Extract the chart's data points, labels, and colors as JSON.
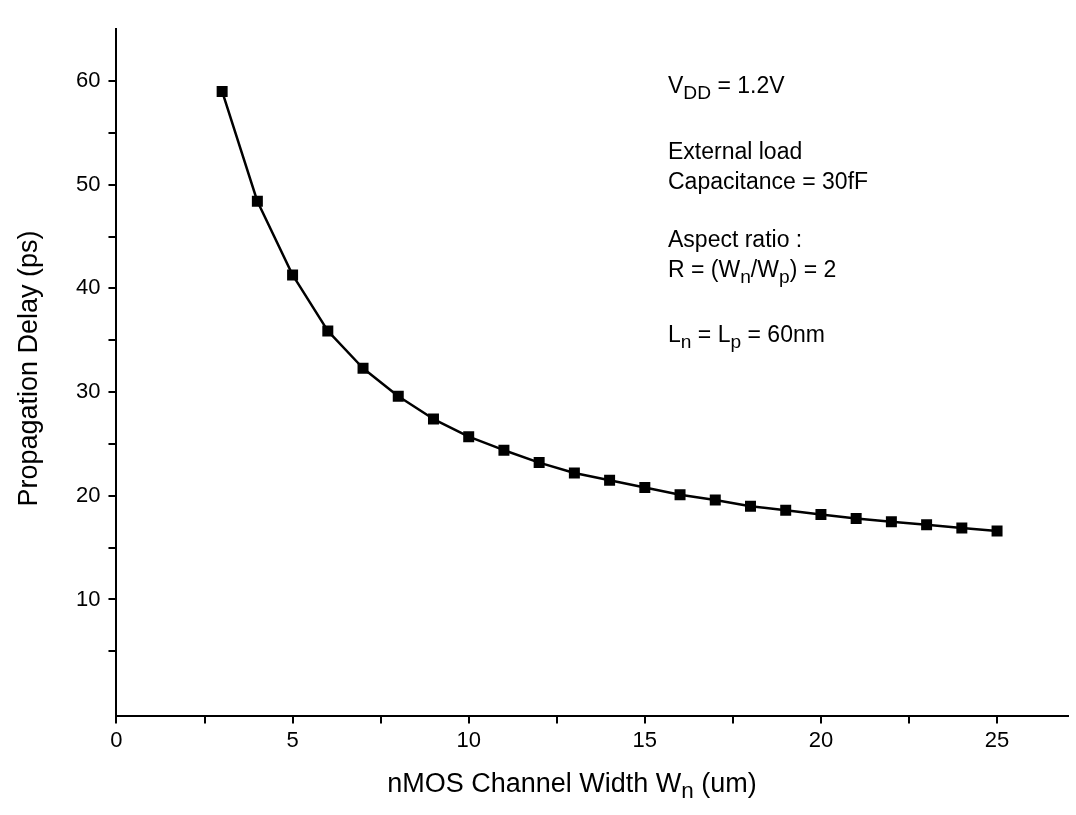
{
  "chart_data": {
    "type": "line",
    "xlabel": "nMOS Channel Width W$_{n}$ (um)",
    "ylabel": "Propagation Delay (ps)",
    "annotations": [
      "V$_{DD}$ = 1.2V",
      "External load\nCapacitance = 30fF",
      "Aspect ratio :\nR = (W$_{n}$/W$_{p}$) = 2",
      "L$_{n}$ = L$_{p}$ = 60nm"
    ],
    "x": [
      3,
      4,
      5,
      6,
      7,
      8,
      9,
      10,
      11,
      12,
      13,
      14,
      15,
      16,
      17,
      18,
      19,
      20,
      21,
      22,
      23,
      24,
      25
    ],
    "series": [
      {
        "color": "#000000",
        "values": [
          59.0,
          48.4,
          41.3,
          35.9,
          32.3,
          29.6,
          27.4,
          25.7,
          24.4,
          23.2,
          22.2,
          21.5,
          20.8,
          20.1,
          19.6,
          19.0,
          18.6,
          18.2,
          17.8,
          17.5,
          17.2,
          16.9,
          16.6
        ]
      }
    ],
    "xlim": [
      0,
      27
    ],
    "xticks": [
      0,
      {
        "value": 2.5,
        "label": null
      },
      5,
      {
        "value": 7.5,
        "label": null
      },
      10,
      {
        "value": 12.5,
        "label": null
      },
      15,
      {
        "value": 17.5,
        "label": null
      },
      20,
      {
        "value": 22.5,
        "label": null
      },
      25
    ],
    "ylim": [
      -1.2,
      65
    ],
    "yticks": [
      {
        "value": 5,
        "label": null
      },
      10,
      {
        "value": 15,
        "label": null
      },
      20,
      {
        "value": 25,
        "label": null
      },
      30,
      {
        "value": 35,
        "label": null
      },
      40,
      {
        "value": 45,
        "label": null
      },
      50,
      {
        "value": 55,
        "label": null
      },
      60
    ],
    "grid": false,
    "legend": false,
    "marker": "square",
    "line_style": "solid"
  }
}
